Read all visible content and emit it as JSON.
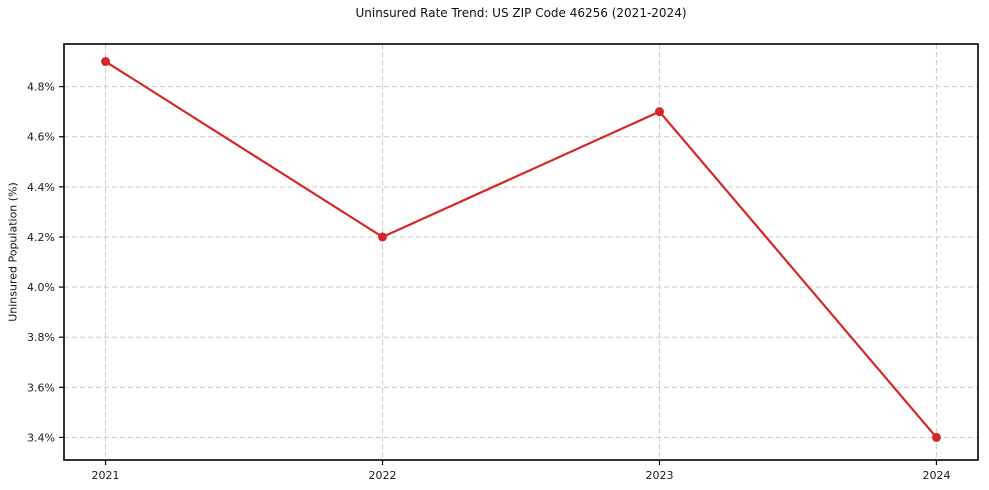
{
  "chart_data": {
    "type": "line",
    "title": "Uninsured Rate Trend: US ZIP Code 46256 (2021-2024)",
    "xlabel": "",
    "ylabel": "Uninsured Population (%)",
    "x": [
      2021,
      2022,
      2023,
      2024
    ],
    "x_tick_labels": [
      "2021",
      "2022",
      "2023",
      "2024"
    ],
    "values": [
      4.9,
      4.2,
      4.7,
      3.4
    ],
    "y_ticks": [
      3.4,
      3.6,
      3.8,
      4.0,
      4.2,
      4.4,
      4.6,
      4.8
    ],
    "y_tick_labels": [
      "3.4%",
      "3.6%",
      "3.8%",
      "4.0%",
      "4.2%",
      "4.4%",
      "4.6%",
      "4.8%"
    ],
    "xlim": [
      2020.85,
      2024.15
    ],
    "ylim": [
      3.31,
      4.97
    ],
    "grid": true,
    "legend": "none",
    "line_color": "#d62728",
    "grid_color": "#cccccc",
    "marker": "circle"
  }
}
